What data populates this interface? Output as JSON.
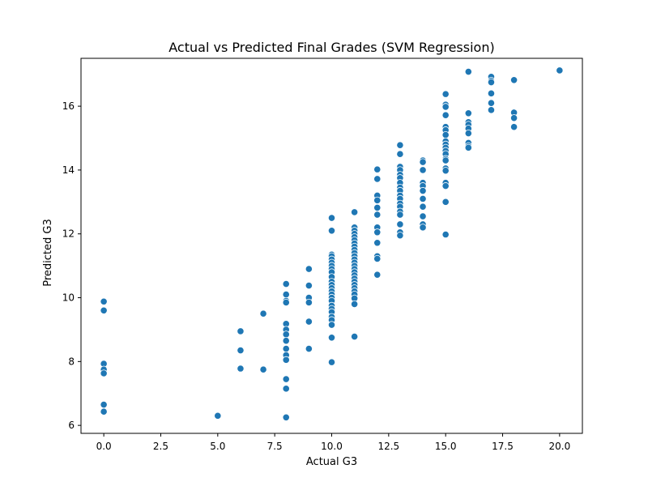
{
  "chart_data": {
    "type": "scatter",
    "title": "Actual vs Predicted Final Grades (SVM Regression)",
    "xlabel": "Actual G3",
    "ylabel": "Predicted G3",
    "xlim": [
      -1.0,
      21.0
    ],
    "ylim": [
      5.75,
      17.5
    ],
    "xticks": [
      "0.0",
      "2.5",
      "5.0",
      "7.5",
      "10.0",
      "12.5",
      "15.0",
      "17.5",
      "20.0"
    ],
    "yticks": [
      "6",
      "8",
      "10",
      "12",
      "14",
      "16"
    ],
    "grid": false,
    "marker_color": "#1f77b4",
    "series": [
      {
        "points": [
          [
            0,
            9.88
          ],
          [
            0,
            9.6
          ],
          [
            0,
            7.93
          ],
          [
            0,
            7.75
          ],
          [
            0,
            7.63
          ],
          [
            0,
            6.65
          ],
          [
            0,
            6.43
          ],
          [
            5,
            6.3
          ],
          [
            6,
            8.95
          ],
          [
            6,
            8.35
          ],
          [
            6,
            7.78
          ],
          [
            7,
            9.5
          ],
          [
            7,
            7.75
          ],
          [
            8,
            10.43
          ],
          [
            8,
            10.1
          ],
          [
            8,
            9.9
          ],
          [
            8,
            9.85
          ],
          [
            8,
            9.18
          ],
          [
            8,
            9.0
          ],
          [
            8,
            8.85
          ],
          [
            8,
            8.65
          ],
          [
            8,
            8.4
          ],
          [
            8,
            8.2
          ],
          [
            8,
            8.05
          ],
          [
            8,
            7.45
          ],
          [
            8,
            7.15
          ],
          [
            8,
            6.25
          ],
          [
            9,
            10.9
          ],
          [
            9,
            10.38
          ],
          [
            9,
            10.0
          ],
          [
            9,
            9.85
          ],
          [
            9,
            9.25
          ],
          [
            9,
            8.4
          ],
          [
            10,
            12.5
          ],
          [
            10,
            12.1
          ],
          [
            10,
            11.35
          ],
          [
            10,
            11.3
          ],
          [
            10,
            11.2
          ],
          [
            10,
            11.1
          ],
          [
            10,
            11.0
          ],
          [
            10,
            10.9
          ],
          [
            10,
            10.8
          ],
          [
            10,
            10.65
          ],
          [
            10,
            10.5
          ],
          [
            10,
            10.4
          ],
          [
            10,
            10.3
          ],
          [
            10,
            10.2
          ],
          [
            10,
            10.1
          ],
          [
            10,
            10.0
          ],
          [
            10,
            9.9
          ],
          [
            10,
            9.75
          ],
          [
            10,
            9.65
          ],
          [
            10,
            9.55
          ],
          [
            10,
            9.4
          ],
          [
            10,
            9.3
          ],
          [
            10,
            9.15
          ],
          [
            10,
            8.75
          ],
          [
            10,
            7.98
          ],
          [
            11,
            12.68
          ],
          [
            11,
            12.2
          ],
          [
            11,
            12.1
          ],
          [
            11,
            12.0
          ],
          [
            11,
            11.9
          ],
          [
            11,
            11.8
          ],
          [
            11,
            11.7
          ],
          [
            11,
            11.6
          ],
          [
            11,
            11.5
          ],
          [
            11,
            11.4
          ],
          [
            11,
            11.3
          ],
          [
            11,
            11.2
          ],
          [
            11,
            11.1
          ],
          [
            11,
            11.0
          ],
          [
            11,
            10.9
          ],
          [
            11,
            10.8
          ],
          [
            11,
            10.7
          ],
          [
            11,
            10.6
          ],
          [
            11,
            10.5
          ],
          [
            11,
            10.4
          ],
          [
            11,
            10.3
          ],
          [
            11,
            10.2
          ],
          [
            11,
            10.1
          ],
          [
            11,
            9.98
          ],
          [
            11,
            9.8
          ],
          [
            11,
            8.78
          ],
          [
            12,
            14.02
          ],
          [
            12,
            13.72
          ],
          [
            12,
            13.2
          ],
          [
            12,
            13.05
          ],
          [
            12,
            12.82
          ],
          [
            12,
            12.6
          ],
          [
            12,
            12.2
          ],
          [
            12,
            12.05
          ],
          [
            12,
            11.72
          ],
          [
            12,
            11.3
          ],
          [
            12,
            11.22
          ],
          [
            12,
            10.72
          ],
          [
            13,
            14.78
          ],
          [
            13,
            14.5
          ],
          [
            13,
            14.1
          ],
          [
            13,
            14.0
          ],
          [
            13,
            13.85
          ],
          [
            13,
            13.75
          ],
          [
            13,
            13.6
          ],
          [
            13,
            13.45
          ],
          [
            13,
            13.35
          ],
          [
            13,
            13.2
          ],
          [
            13,
            13.1
          ],
          [
            13,
            12.95
          ],
          [
            13,
            12.85
          ],
          [
            13,
            12.7
          ],
          [
            13,
            12.6
          ],
          [
            13,
            12.3
          ],
          [
            13,
            12.05
          ],
          [
            13,
            11.95
          ],
          [
            14,
            14.3
          ],
          [
            14,
            14.25
          ],
          [
            14,
            14.0
          ],
          [
            14,
            13.6
          ],
          [
            14,
            13.5
          ],
          [
            14,
            13.35
          ],
          [
            14,
            13.1
          ],
          [
            14,
            12.85
          ],
          [
            14,
            12.55
          ],
          [
            14,
            12.3
          ],
          [
            14,
            12.2
          ],
          [
            15,
            16.38
          ],
          [
            15,
            16.05
          ],
          [
            15,
            15.98
          ],
          [
            15,
            15.72
          ],
          [
            15,
            15.35
          ],
          [
            15,
            15.25
          ],
          [
            15,
            15.1
          ],
          [
            15,
            14.9
          ],
          [
            15,
            14.8
          ],
          [
            15,
            14.7
          ],
          [
            15,
            14.6
          ],
          [
            15,
            14.5
          ],
          [
            15,
            14.35
          ],
          [
            15,
            14.3
          ],
          [
            15,
            14.05
          ],
          [
            15,
            13.98
          ],
          [
            15,
            13.6
          ],
          [
            15,
            13.5
          ],
          [
            15,
            13.0
          ],
          [
            15,
            11.98
          ],
          [
            16,
            17.08
          ],
          [
            16,
            15.78
          ],
          [
            16,
            15.5
          ],
          [
            16,
            15.42
          ],
          [
            16,
            15.3
          ],
          [
            16,
            15.15
          ],
          [
            16,
            14.85
          ],
          [
            16,
            14.75
          ],
          [
            16,
            14.7
          ],
          [
            17,
            16.92
          ],
          [
            17,
            16.8
          ],
          [
            17,
            16.75
          ],
          [
            17,
            16.4
          ],
          [
            17,
            16.1
          ],
          [
            17,
            15.88
          ],
          [
            18,
            16.82
          ],
          [
            18,
            15.8
          ],
          [
            18,
            15.63
          ],
          [
            18,
            15.35
          ],
          [
            20,
            17.12
          ]
        ]
      }
    ]
  }
}
